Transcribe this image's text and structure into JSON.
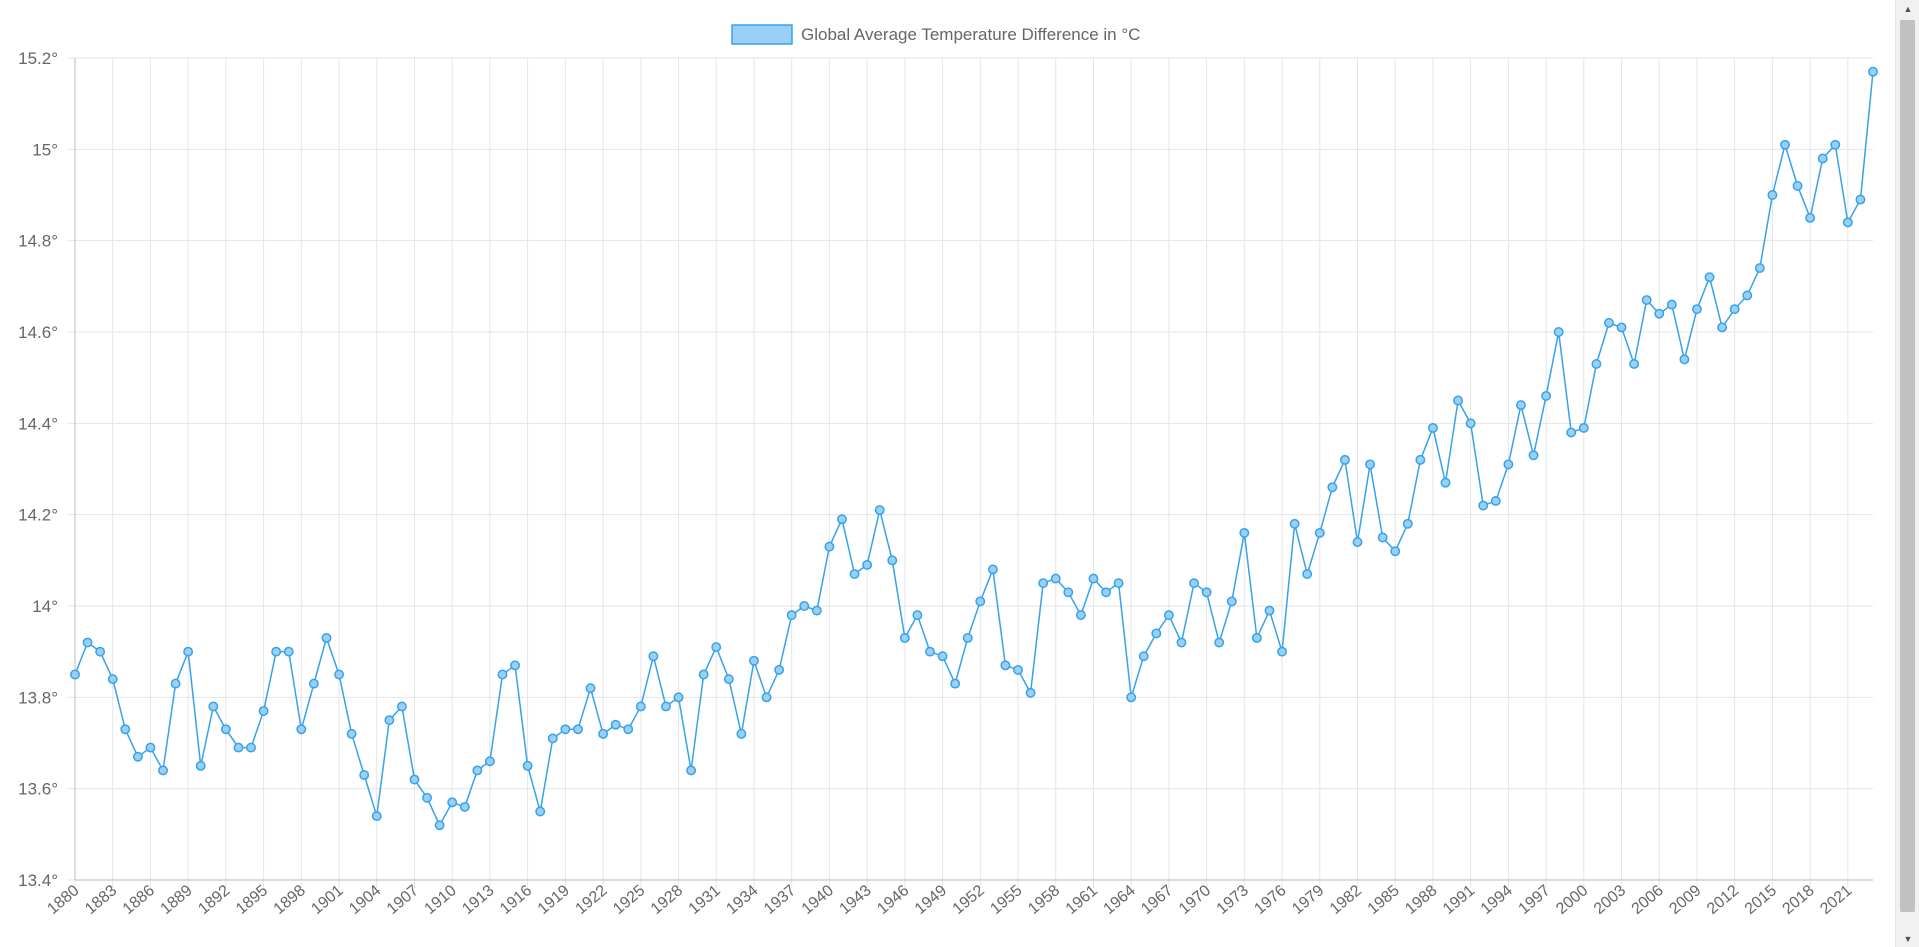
{
  "chart_data": {
    "type": "line",
    "legend": {
      "label": "Global Average Temperature Difference in °C",
      "position": "top",
      "fill_color": "#9ad0f5",
      "border_color": "#36a2eb"
    },
    "line_color": "#36a2eb",
    "point_fill": "#9ad0f5",
    "grid": true,
    "grid_color": "#e5e5e5",
    "y_axis": {
      "min": 13.4,
      "max": 15.2,
      "step": 0.2,
      "tick_labels": [
        "15.2°",
        "15°",
        "14.8°",
        "14.6°",
        "14.4°",
        "14.2°",
        "14°",
        "13.8°",
        "13.6°",
        "13.4°"
      ]
    },
    "x_axis": {
      "tick_labels": [
        "1880",
        "1883",
        "1886",
        "1889",
        "1892",
        "1895",
        "1898",
        "1901",
        "1904",
        "1907",
        "1910",
        "1913",
        "1916",
        "1919",
        "1922",
        "1925",
        "1928",
        "1931",
        "1934",
        "1937",
        "1940",
        "1943",
        "1946",
        "1949",
        "1952",
        "1955",
        "1958",
        "1961",
        "1964",
        "1967",
        "1970",
        "1973",
        "1976",
        "1979",
        "1982",
        "1985",
        "1988",
        "1991",
        "1994",
        "1997",
        "2000",
        "2003",
        "2006",
        "2009",
        "2012",
        "2015",
        "2018",
        "2021"
      ]
    },
    "series": [
      {
        "x": [
          1880,
          1881,
          1882,
          1883,
          1884,
          1885,
          1886,
          1887,
          1888,
          1889,
          1890,
          1891,
          1892,
          1893,
          1894,
          1895,
          1896,
          1897,
          1898,
          1899,
          1900,
          1901,
          1902,
          1903,
          1904,
          1905,
          1906,
          1907,
          1908,
          1909,
          1910,
          1911,
          1912,
          1913,
          1914,
          1915,
          1916,
          1917,
          1918,
          1919,
          1920,
          1921,
          1922,
          1923,
          1924,
          1925,
          1926,
          1927,
          1928,
          1929,
          1930,
          1931,
          1932,
          1933,
          1934,
          1935,
          1936,
          1937,
          1938,
          1939,
          1940,
          1941,
          1942,
          1943,
          1944,
          1945,
          1946,
          1947,
          1948,
          1949,
          1950,
          1951,
          1952,
          1953,
          1954,
          1955,
          1956,
          1957,
          1958,
          1959,
          1960,
          1961,
          1962,
          1963,
          1964,
          1965,
          1966,
          1967,
          1968,
          1969,
          1970,
          1971,
          1972,
          1973,
          1974,
          1975,
          1976,
          1977,
          1978,
          1979,
          1980,
          1981,
          1982,
          1983,
          1984,
          1985,
          1986,
          1987,
          1988,
          1989,
          1990,
          1991,
          1992,
          1993,
          1994,
          1995,
          1996,
          1997,
          1998,
          1999,
          2000,
          2001,
          2002,
          2003,
          2004,
          2005,
          2006,
          2007,
          2008,
          2009,
          2010,
          2011,
          2012,
          2013,
          2014,
          2015,
          2016,
          2017,
          2018,
          2019,
          2020,
          2021,
          2022,
          2023
        ],
        "values": [
          13.85,
          13.92,
          13.9,
          13.84,
          13.73,
          13.67,
          13.69,
          13.64,
          13.83,
          13.9,
          13.65,
          13.78,
          13.73,
          13.69,
          13.69,
          13.77,
          13.9,
          13.9,
          13.73,
          13.83,
          13.93,
          13.85,
          13.72,
          13.63,
          13.54,
          13.75,
          13.78,
          13.62,
          13.58,
          13.52,
          13.57,
          13.56,
          13.64,
          13.66,
          13.85,
          13.87,
          13.65,
          13.55,
          13.71,
          13.73,
          13.73,
          13.82,
          13.72,
          13.74,
          13.73,
          13.78,
          13.89,
          13.78,
          13.8,
          13.64,
          13.85,
          13.91,
          13.84,
          13.72,
          13.88,
          13.8,
          13.86,
          13.98,
          14.0,
          13.99,
          14.13,
          14.19,
          14.07,
          14.09,
          14.21,
          14.1,
          13.93,
          13.98,
          13.9,
          13.89,
          13.83,
          13.93,
          14.01,
          14.08,
          13.87,
          13.86,
          13.81,
          14.05,
          14.06,
          14.03,
          13.98,
          14.06,
          14.03,
          14.05,
          13.8,
          13.89,
          13.94,
          13.98,
          13.92,
          14.05,
          14.03,
          13.92,
          14.01,
          14.16,
          13.93,
          13.99,
          13.9,
          14.18,
          14.07,
          14.16,
          14.26,
          14.32,
          14.14,
          14.31,
          14.15,
          14.12,
          14.18,
          14.32,
          14.39,
          14.27,
          14.45,
          14.4,
          14.22,
          14.23,
          14.31,
          14.44,
          14.33,
          14.46,
          14.6,
          14.38,
          14.39,
          14.53,
          14.62,
          14.61,
          14.53,
          14.67,
          14.64,
          14.66,
          14.54,
          14.65,
          14.72,
          14.61,
          14.65,
          14.68,
          14.74,
          14.9,
          15.01,
          14.92,
          14.85,
          14.98,
          15.01,
          14.84,
          14.89,
          15.17
        ]
      }
    ]
  }
}
